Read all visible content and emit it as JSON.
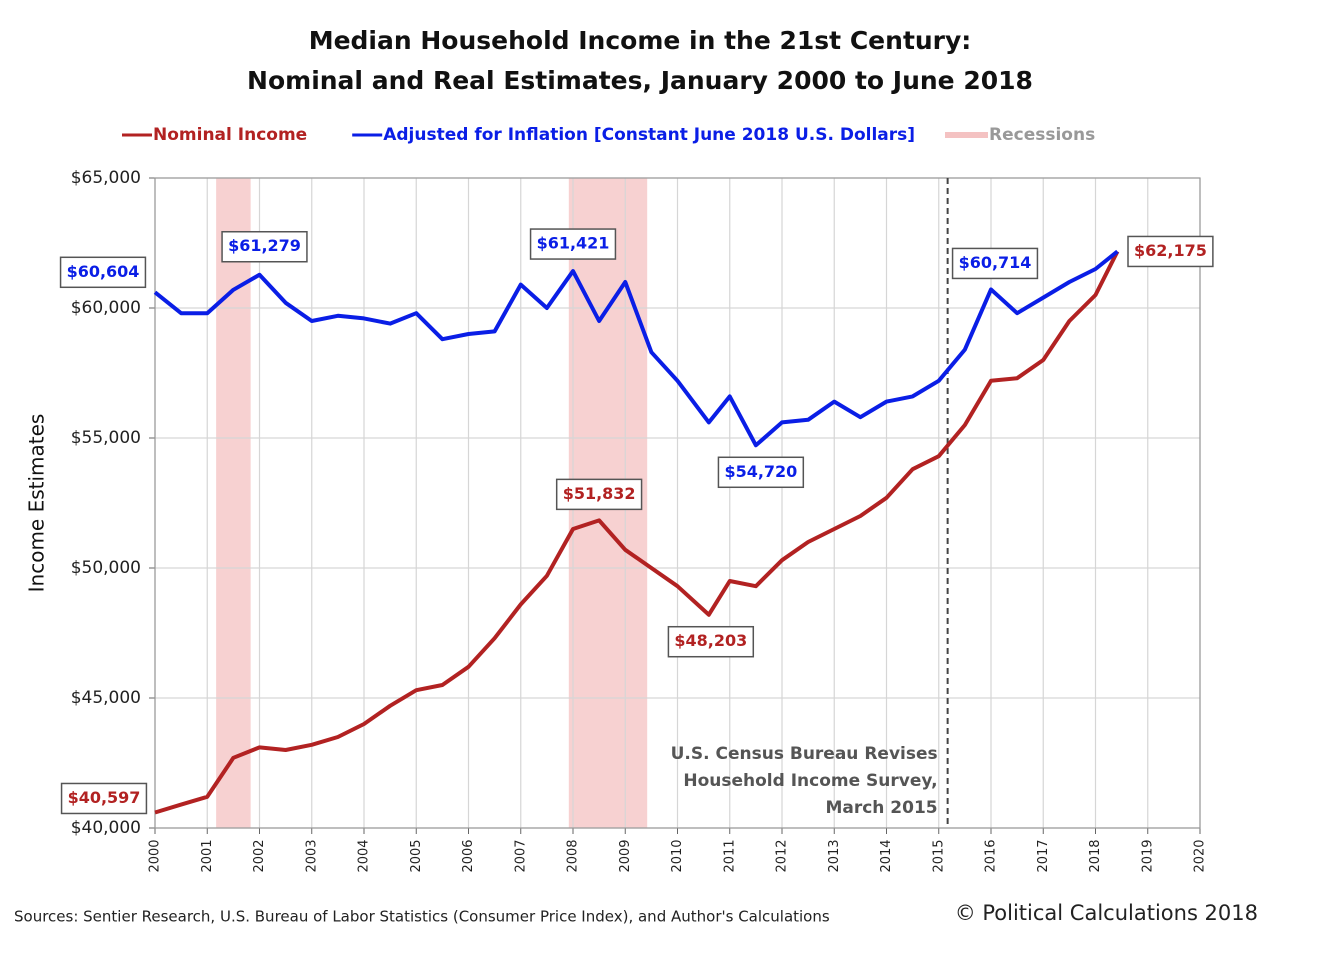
{
  "chart_data": {
    "type": "line",
    "title": [
      "Median Household Income in the 21st Century:",
      "Nominal and Real Estimates, January 2000 to June 2018"
    ],
    "y_label": "Income Estimates",
    "x": [
      2000,
      2000.5,
      2001,
      2001.5,
      2002,
      2002.5,
      2003,
      2003.5,
      2004,
      2004.5,
      2005,
      2005.5,
      2006,
      2006.5,
      2007,
      2007.5,
      2008,
      2008.5,
      2009,
      2009.5,
      2010,
      2010.6,
      2011,
      2011.5,
      2012,
      2012.5,
      2013,
      2013.5,
      2014,
      2014.5,
      2015,
      2015.5,
      2016,
      2016.5,
      2017,
      2017.5,
      2018,
      2018.42
    ],
    "series": [
      {
        "name": "Nominal Income",
        "color": "#b22222",
        "values": [
          40597,
          40900,
          41200,
          42700,
          43100,
          43000,
          43200,
          43500,
          44000,
          44700,
          45300,
          45500,
          46200,
          47300,
          48600,
          49700,
          51500,
          51832,
          50700,
          50000,
          49300,
          48203,
          49500,
          49300,
          50300,
          51000,
          51500,
          52000,
          52700,
          53800,
          54300,
          55500,
          57200,
          57300,
          58000,
          59500,
          60500,
          62175
        ],
        "value_labels": [
          "$40,597",
          null,
          null,
          null,
          null,
          null,
          null,
          null,
          null,
          null,
          null,
          null,
          null,
          null,
          null,
          null,
          null,
          "$51,832",
          null,
          null,
          null,
          "$48,203",
          null,
          null,
          null,
          null,
          null,
          null,
          null,
          null,
          null,
          null,
          null,
          null,
          null,
          null,
          null,
          "$62,175"
        ]
      },
      {
        "name": "Adjusted for Inflation [Constant June 2018 U.S. Dollars]",
        "color": "#0a1ee6",
        "values": [
          60604,
          59800,
          59800,
          60700,
          61279,
          60200,
          59500,
          59700,
          59600,
          59400,
          59800,
          58800,
          59000,
          59100,
          60900,
          60000,
          61421,
          59500,
          61000,
          58300,
          57200,
          55600,
          56600,
          54720,
          55600,
          55700,
          56400,
          55800,
          56400,
          56600,
          57200,
          58400,
          60714,
          59800,
          60400,
          61000,
          61500,
          62175
        ],
        "value_labels": [
          "$60,604",
          null,
          null,
          null,
          "$61,279",
          null,
          null,
          null,
          null,
          null,
          null,
          null,
          null,
          null,
          null,
          null,
          "$61,421",
          null,
          null,
          null,
          null,
          null,
          null,
          "$54,720",
          null,
          null,
          null,
          null,
          null,
          null,
          null,
          null,
          "$60,714",
          null,
          null,
          null,
          null,
          null
        ]
      }
    ],
    "recessions": {
      "name": "Recessions",
      "color": "#f4c2c2",
      "spans": [
        [
          2001.17,
          2001.83
        ],
        [
          2007.92,
          2009.42
        ]
      ]
    },
    "revision": {
      "x": 2015.17,
      "text": [
        "U.S. Census Bureau Revises",
        "Household Income Survey,",
        "March 2015"
      ]
    },
    "xlim": [
      2000,
      2020
    ],
    "xticks": [
      2000,
      2001,
      2002,
      2003,
      2004,
      2005,
      2006,
      2007,
      2008,
      2009,
      2010,
      2011,
      2012,
      2013,
      2014,
      2015,
      2016,
      2017,
      2018,
      2019,
      2020
    ],
    "ylim": [
      40000,
      65000
    ],
    "yticks": [
      {
        "value": 40000,
        "label": "$40,000"
      },
      {
        "value": 45000,
        "label": "$45,000"
      },
      {
        "value": 50000,
        "label": "$50,000"
      },
      {
        "value": 55000,
        "label": "$55,000"
      },
      {
        "value": 60000,
        "label": "$60,000"
      },
      {
        "value": 65000,
        "label": "$65,000"
      }
    ],
    "grid": true,
    "source": "Sources: Sentier Research, U.S. Bureau of Labor Statistics (Consumer  Price Index), and Author's Calculations",
    "copyright": "© Political Calculations 2018"
  }
}
